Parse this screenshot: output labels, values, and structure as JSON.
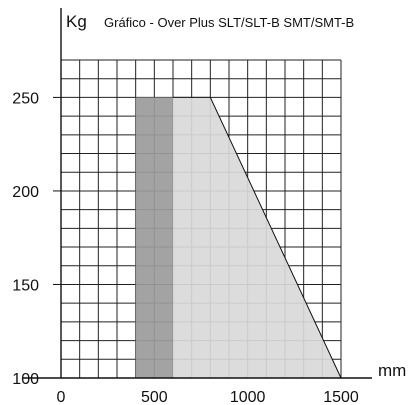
{
  "chart_data": {
    "type": "area",
    "title": "Gráfico - Over Plus SLT/SLT-B SMT/SMT-B",
    "xlabel": "mm",
    "ylabel": "Kg",
    "xlim": [
      0,
      1500
    ],
    "ylim": [
      100,
      270
    ],
    "x_ticks": [
      {
        "value": 0,
        "label": "0"
      },
      {
        "value": 500,
        "label": "500"
      },
      {
        "value": 1000,
        "label": "1000"
      },
      {
        "value": 1500,
        "label": "1500"
      }
    ],
    "y_ticks": [
      {
        "value": 100,
        "label": "100"
      },
      {
        "value": 150,
        "label": "150"
      },
      {
        "value": 200,
        "label": "200"
      },
      {
        "value": 250,
        "label": "250"
      }
    ],
    "grid": true,
    "grid_step_x": 100,
    "grid_step_y": 10,
    "series": [
      {
        "x": [
          400,
          600
        ],
        "y_bottom": 100,
        "y_top": 250,
        "color": "#9b9b9b"
      },
      {
        "x": [
          600,
          800,
          1500
        ],
        "y": [
          250,
          250,
          100
        ],
        "y_bottom": 100,
        "color": "#d9d9d9"
      }
    ]
  }
}
